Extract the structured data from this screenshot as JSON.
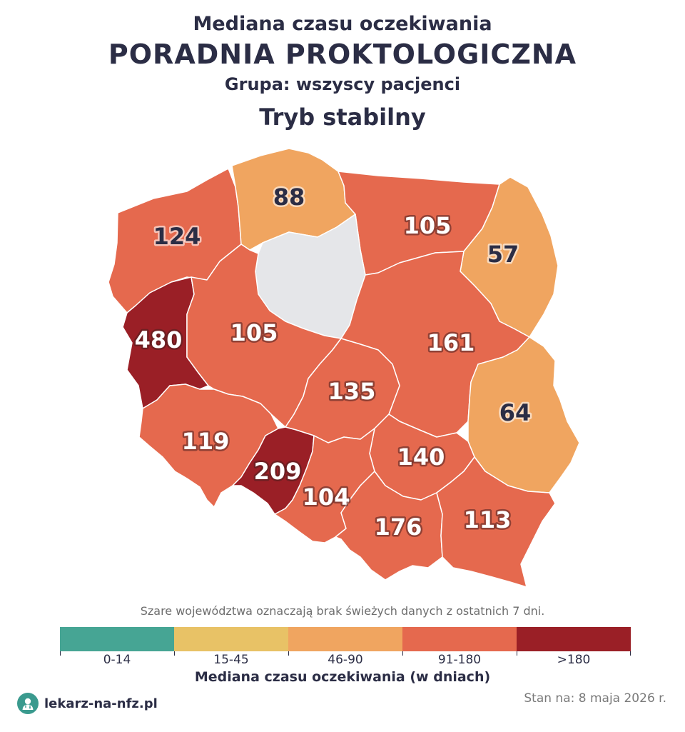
{
  "title": {
    "line1": "Mediana czasu oczekiwania",
    "line2": "PORADNIA PROKTOLOGICZNA",
    "line3": "Grupa: wszyscy pacjenci",
    "line4": "Tryb stabilny"
  },
  "colors": {
    "no_data": "#e5e6e9",
    "bin_0_14": "#46a594",
    "bin_15_45": "#e8c266",
    "bin_46_90": "#f0a560",
    "bin_91_180": "#e5694e",
    "bin_over_180": "#9a1f26"
  },
  "regions": {
    "zachodniopomorskie": {
      "value": "124",
      "bin": "91-180"
    },
    "pomorskie": {
      "value": "88",
      "bin": "46-90"
    },
    "warminsko_mazurskie": {
      "value": "105",
      "bin": "91-180"
    },
    "podlaskie": {
      "value": "57",
      "bin": "46-90"
    },
    "kujawsko_pomorskie": {
      "value": "",
      "bin": "no-data"
    },
    "lubuskie": {
      "value": "480",
      "bin": ">180"
    },
    "wielkopolskie": {
      "value": "105",
      "bin": "91-180"
    },
    "mazowieckie": {
      "value": "161",
      "bin": "91-180"
    },
    "lodzkie": {
      "value": "135",
      "bin": "91-180"
    },
    "lubelskie": {
      "value": "64",
      "bin": "46-90"
    },
    "dolnoslaskie": {
      "value": "119",
      "bin": "91-180"
    },
    "opolskie": {
      "value": "209",
      "bin": ">180"
    },
    "swietokrzyskie": {
      "value": "140",
      "bin": "91-180"
    },
    "slaskie": {
      "value": "104",
      "bin": "91-180"
    },
    "malopolskie": {
      "value": "176",
      "bin": "91-180"
    },
    "podkarpackie": {
      "value": "113",
      "bin": "91-180"
    }
  },
  "note": "Szare województwa oznaczają brak świeżych danych z ostatnich 7 dni.",
  "legend": {
    "bins": [
      "0-14",
      "15-45",
      "46-90",
      "91-180",
      ">180"
    ],
    "title": "Mediana czasu oczekiwania (w dniach)"
  },
  "footer": {
    "brand": "lekarz-na-nfz.pl",
    "logo_icon": "doctor-icon",
    "date": "Stan na: 8 maja 2026 r."
  }
}
